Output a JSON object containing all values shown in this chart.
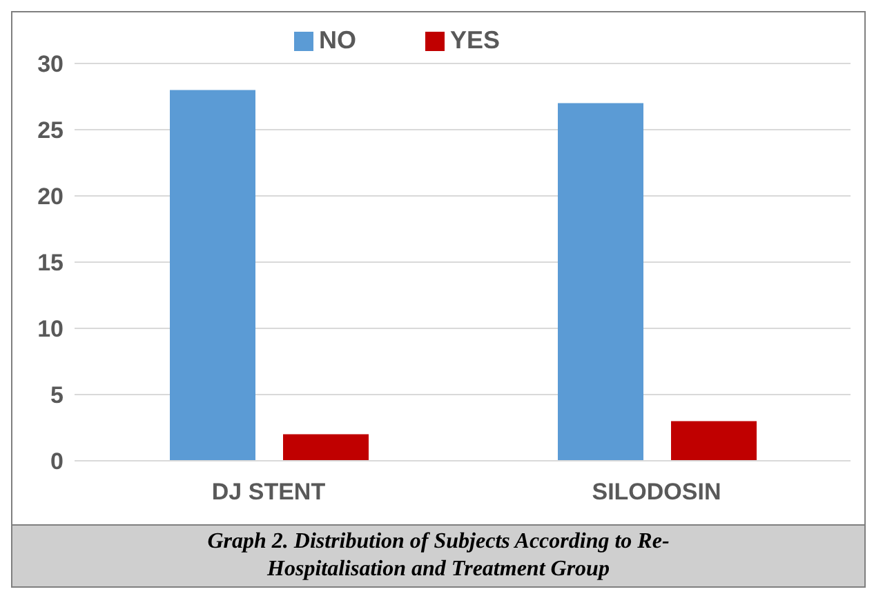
{
  "chart_data": {
    "type": "bar",
    "title": "Graph 2. Distribution of Subjects According to Re-Hospitalisation and Treatment Group",
    "categories": [
      "DJ STENT",
      "SILODOSIN"
    ],
    "series": [
      {
        "name": "NO",
        "color": "#5b9bd5",
        "values": [
          28,
          27
        ]
      },
      {
        "name": "YES",
        "color": "#c00000",
        "values": [
          2,
          3
        ]
      }
    ],
    "ylim": [
      0,
      30
    ],
    "yticks": [
      0,
      5,
      10,
      15,
      20,
      25,
      30
    ],
    "grid": "y",
    "legend": "top"
  }
}
